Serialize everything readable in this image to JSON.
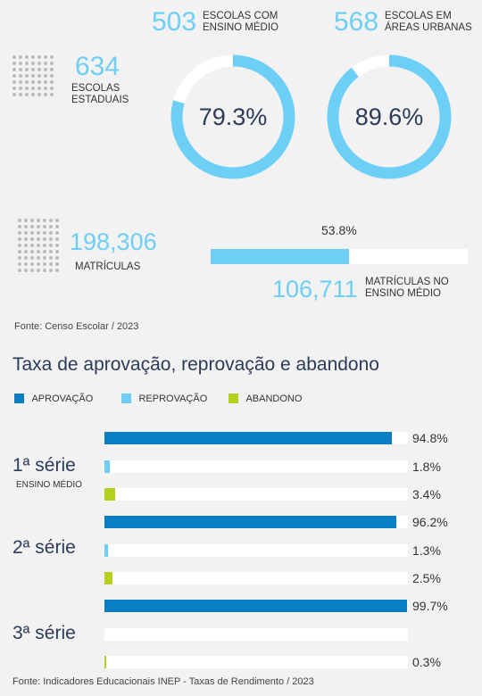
{
  "stats": {
    "estaduais": {
      "value": "634",
      "label_line1": "ESCOLAS",
      "label_line2": "ESTADUAIS",
      "icon": "school-building-icon"
    },
    "ensino_medio": {
      "value": "503",
      "label_line1": "ESCOLAS COM",
      "label_line2": "ENSINO MÉDIO",
      "pct_label": "79.3%",
      "pct": 79.3
    },
    "urbanas": {
      "value": "568",
      "label_line1": "ESCOLAS EM",
      "label_line2": "ÁREAS URBANAS",
      "pct_label": "89.6%",
      "pct": 89.6
    },
    "matriculas": {
      "value": "198,306",
      "label": "MATRÍCULAS",
      "icon": "enrollment-icon"
    },
    "matriculas_em": {
      "value": "106,711",
      "label_line1": "MATRÍCULAS NO",
      "label_line2": "ENSINO MÉDIO",
      "pct_label": "53.8%",
      "pct": 53.8
    }
  },
  "source_top": "Fonte: Censo Escolar / 2023",
  "section_title": "Taxa de aprovação, reprovação e abandono",
  "source_bottom": "Fonte: Indicadores Educacionais INEP - Taxas de Rendimento / 2023",
  "colors": {
    "aprovacao": "#0a7ec2",
    "reprovacao": "#6dcff6",
    "abandono": "#b5cf1f",
    "ring_bg": "#ffffff"
  },
  "chart_data": {
    "type": "bar",
    "orientation": "horizontal",
    "legend": [
      "APROVAÇÃO",
      "REPROVAÇÃO",
      "ABANDONO"
    ],
    "legend_position": "top-left",
    "xlim": [
      0,
      100
    ],
    "groups": [
      {
        "label": "1ª série",
        "sublabel": "ENSINO MÉDIO",
        "values": [
          94.8,
          1.8,
          3.4
        ],
        "labels": [
          "94.8%",
          "1.8%",
          "3.4%"
        ]
      },
      {
        "label": "2ª série",
        "sublabel": "",
        "values": [
          96.2,
          1.3,
          2.5
        ],
        "labels": [
          "96.2%",
          "1.3%",
          "2.5%"
        ]
      },
      {
        "label": "3ª série",
        "sublabel": "",
        "values": [
          99.7,
          0,
          0.3
        ],
        "labels": [
          "99.7%",
          "",
          "0.3%"
        ]
      }
    ]
  }
}
